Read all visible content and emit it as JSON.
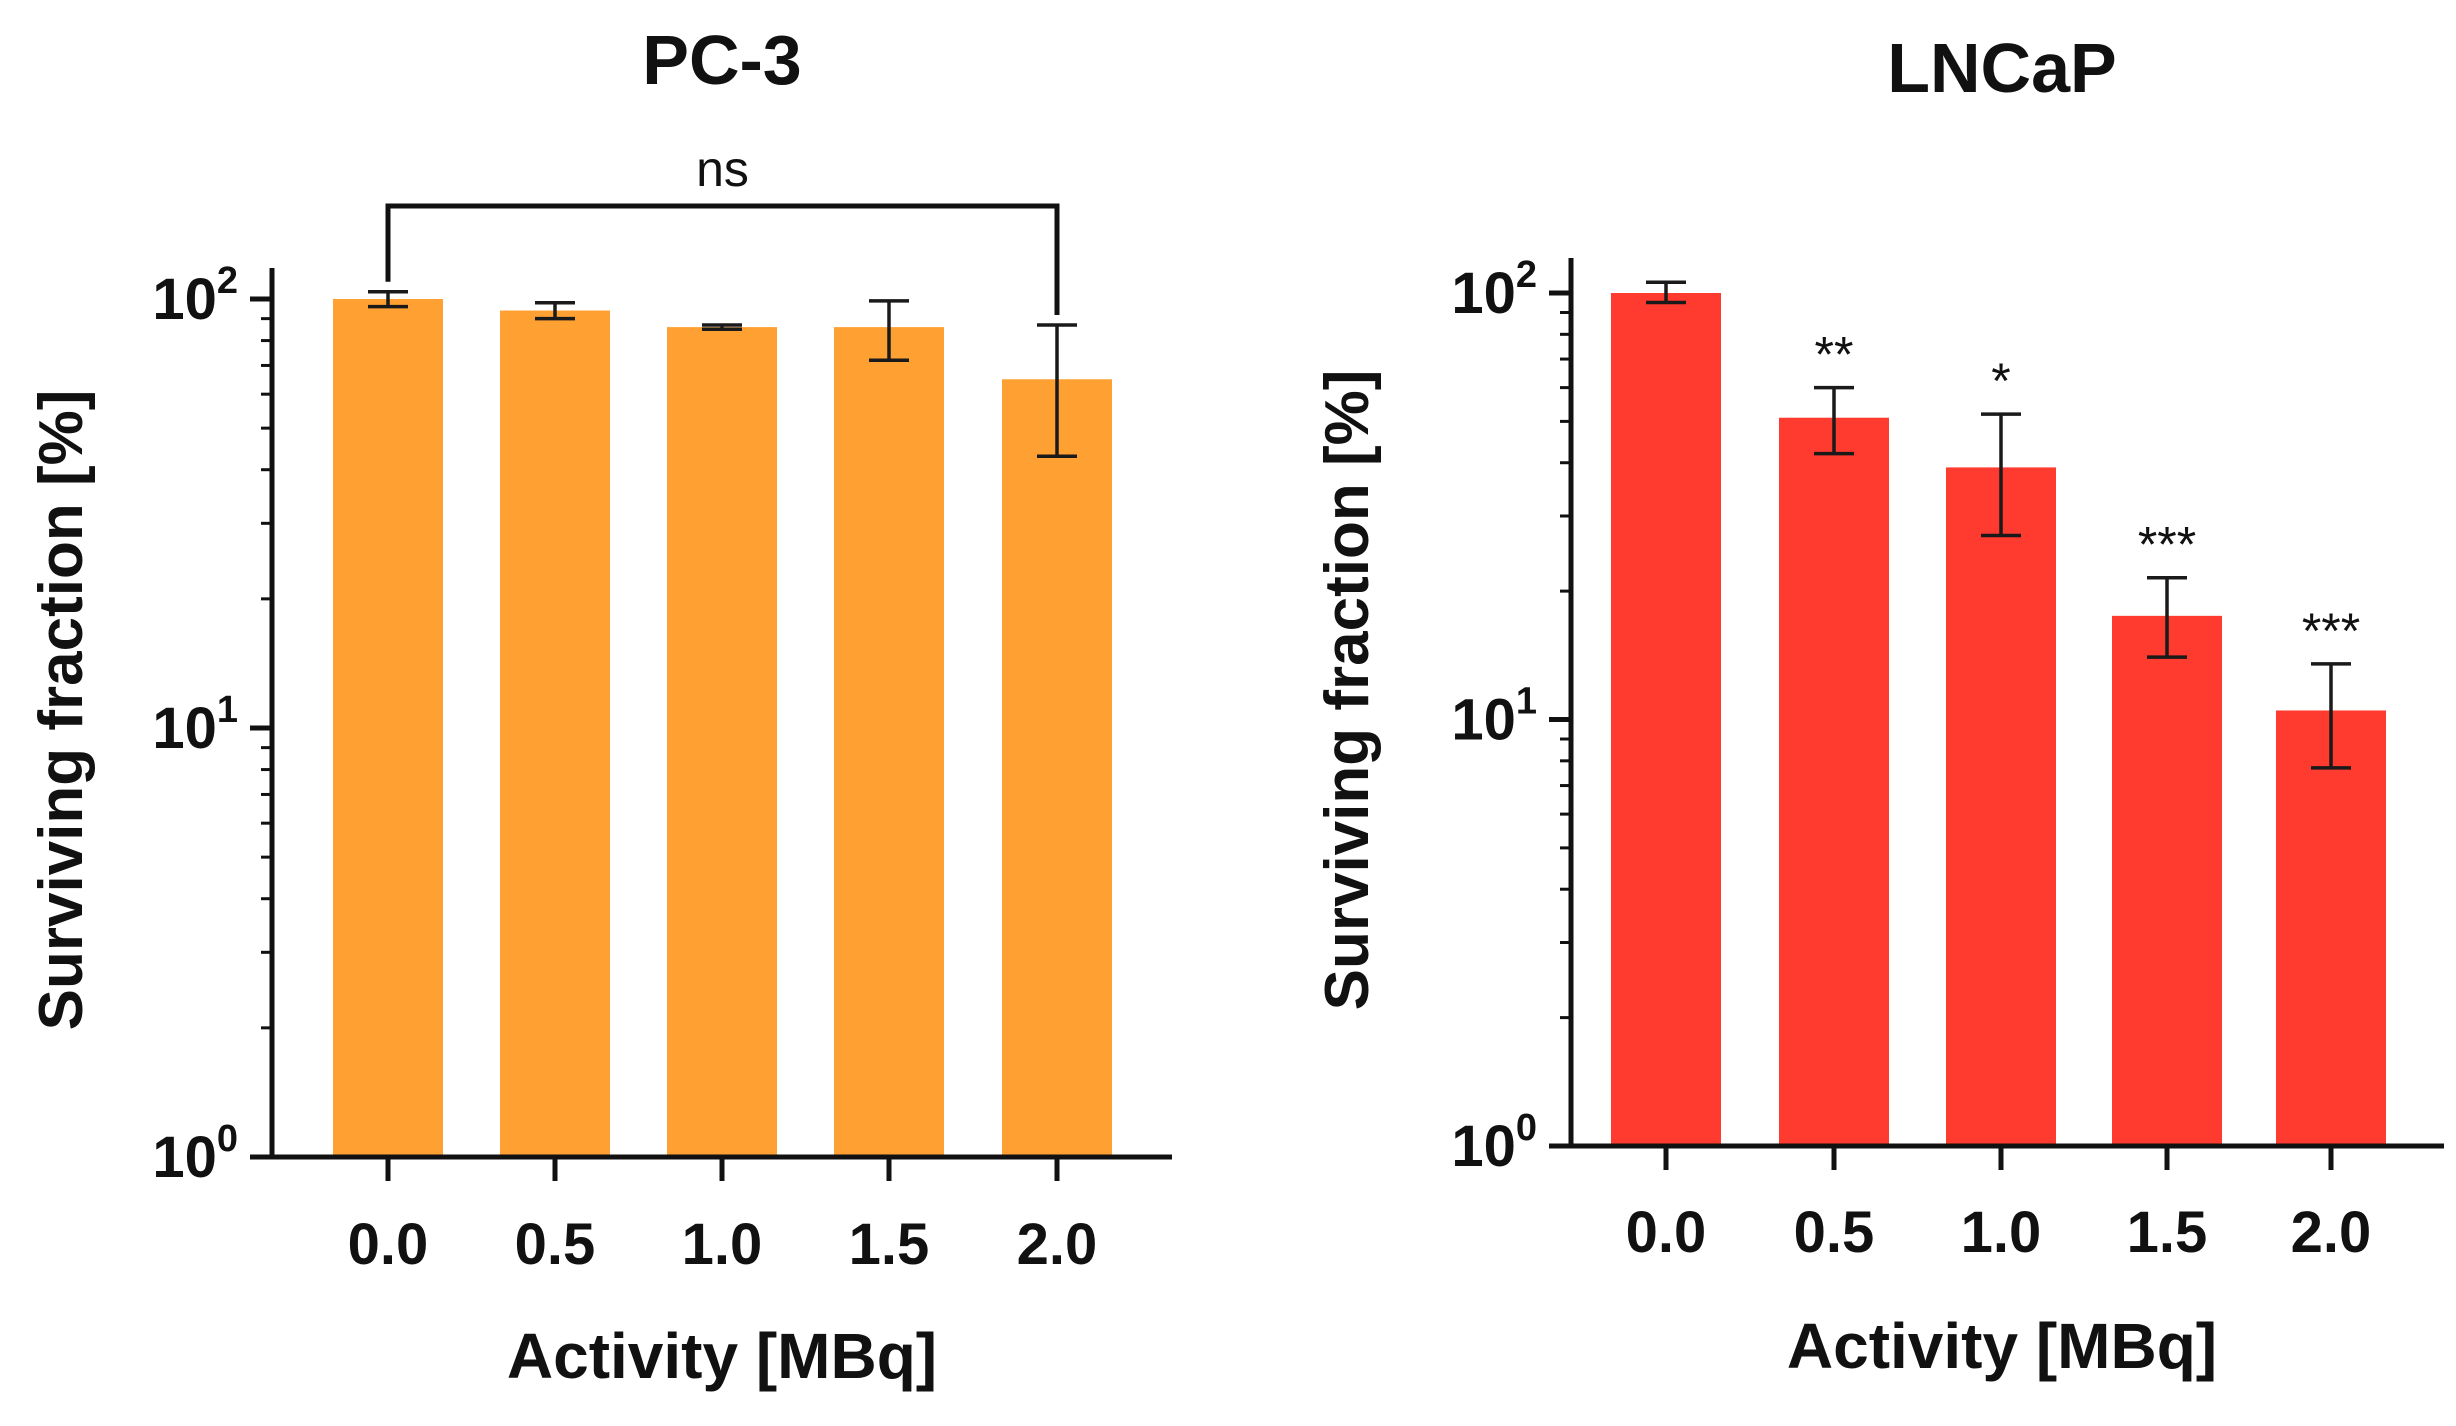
{
  "chart_data": [
    {
      "type": "bar",
      "title": "PC-3",
      "xlabel": "Activity [MBq]",
      "ylabel": "Surviving fraction [%]",
      "yscale": "log",
      "ylim": [
        1,
        120
      ],
      "yticks": [
        {
          "base": "10",
          "exp": "0",
          "value": 1
        },
        {
          "base": "10",
          "exp": "1",
          "value": 10
        },
        {
          "base": "10",
          "exp": "2",
          "value": 100
        }
      ],
      "categories": [
        "0.0",
        "0.5",
        "1.0",
        "1.5",
        "2.0"
      ],
      "values": [
        100,
        94,
        86,
        86,
        65
      ],
      "error_low": [
        96,
        90,
        85,
        72,
        43
      ],
      "error_high": [
        104,
        98,
        87,
        99,
        87
      ],
      "color": "#FFA033",
      "bracket": {
        "from": 0,
        "to": 4,
        "label": "ns"
      }
    },
    {
      "type": "bar",
      "title": "LNCaP",
      "xlabel": "Activity [MBq]",
      "ylabel": "Surviving fraction [%]",
      "yscale": "log",
      "ylim": [
        1,
        120
      ],
      "yticks": [
        {
          "base": "10",
          "exp": "0",
          "value": 1
        },
        {
          "base": "10",
          "exp": "1",
          "value": 10
        },
        {
          "base": "10",
          "exp": "2",
          "value": 100
        }
      ],
      "categories": [
        "0.0",
        "0.5",
        "1.0",
        "1.5",
        "2.0"
      ],
      "values": [
        100,
        51,
        39,
        17.5,
        10.5
      ],
      "error_low": [
        95,
        42,
        27,
        14,
        7.7
      ],
      "error_high": [
        106,
        60,
        52,
        21.5,
        13.5
      ],
      "significance": [
        "",
        "**",
        "*",
        "***",
        "***"
      ],
      "color": "#FF3A2F"
    }
  ]
}
